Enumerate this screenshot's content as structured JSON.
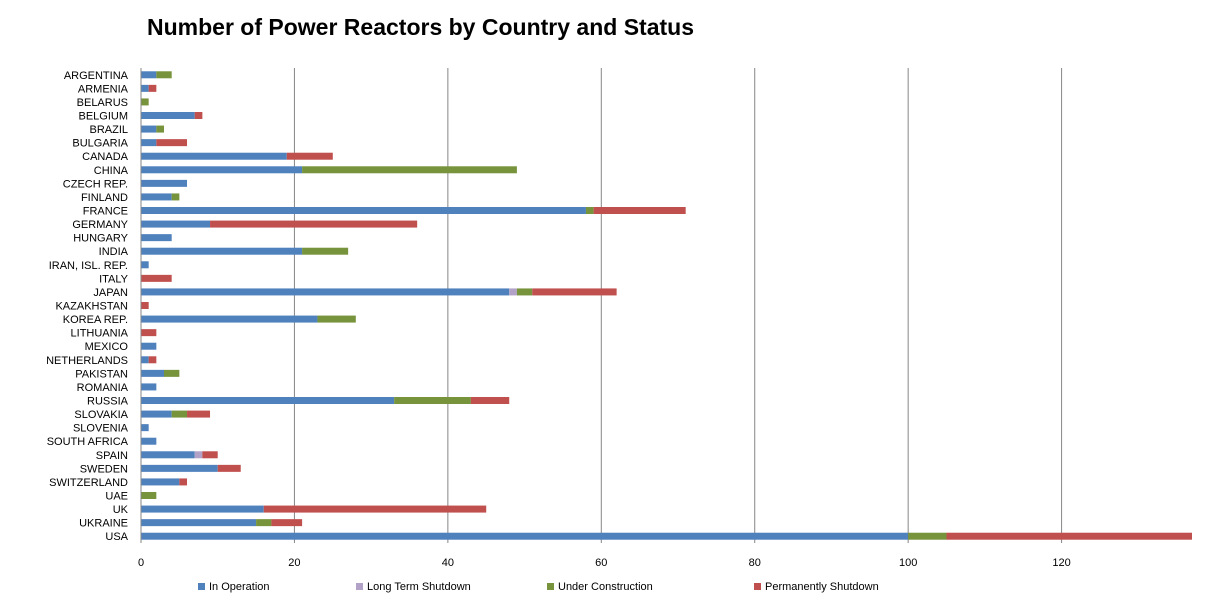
{
  "chart_data": {
    "type": "bar",
    "orientation": "horizontal",
    "stacked": true,
    "title": "Number of Power Reactors by Country and Status",
    "xlabel": "",
    "ylabel": "",
    "xlim": [
      0,
      137
    ],
    "xticks": [
      "0",
      "20",
      "40",
      "60",
      "80",
      "100",
      "120"
    ],
    "grid": "vertical",
    "legend_position": "bottom",
    "categories": [
      "ARGENTINA",
      "ARMENIA",
      "BELARUS",
      "BELGIUM",
      "BRAZIL",
      "BULGARIA",
      "CANADA",
      "CHINA",
      "CZECH REP.",
      "FINLAND",
      "FRANCE",
      "GERMANY",
      "HUNGARY",
      "INDIA",
      "IRAN, ISL. REP.",
      "ITALY",
      "JAPAN",
      "KAZAKHSTAN",
      "KOREA REP.",
      "LITHUANIA",
      "MEXICO",
      "NETHERLANDS",
      "PAKISTAN",
      "ROMANIA",
      "RUSSIA",
      "SLOVAKIA",
      "SLOVENIA",
      "SOUTH AFRICA",
      "SPAIN",
      "SWEDEN",
      "SWITZERLAND",
      "UAE",
      "UK",
      "UKRAINE",
      "USA"
    ],
    "series": [
      {
        "name": "In Operation",
        "color": "#4F81BD",
        "values": [
          2,
          1,
          0,
          7,
          2,
          2,
          19,
          21,
          6,
          4,
          58,
          9,
          4,
          21,
          1,
          0,
          48,
          0,
          23,
          0,
          2,
          1,
          3,
          2,
          33,
          4,
          1,
          2,
          7,
          10,
          5,
          0,
          16,
          15,
          100
        ]
      },
      {
        "name": "Long Term Shutdown",
        "color": "#B3A2C7",
        "values": [
          0,
          0,
          0,
          0,
          0,
          0,
          0,
          0,
          0,
          0,
          0,
          0,
          0,
          0,
          0,
          0,
          1,
          0,
          0,
          0,
          0,
          0,
          0,
          0,
          0,
          0,
          0,
          0,
          1,
          0,
          0,
          0,
          0,
          0,
          0
        ]
      },
      {
        "name": "Under Construction",
        "color": "#77933C",
        "values": [
          2,
          0,
          1,
          0,
          1,
          0,
          0,
          28,
          0,
          1,
          1,
          0,
          0,
          6,
          0,
          0,
          2,
          0,
          5,
          0,
          0,
          0,
          2,
          0,
          10,
          2,
          0,
          0,
          0,
          0,
          0,
          2,
          0,
          2,
          5
        ]
      },
      {
        "name": "Permanently Shutdown",
        "color": "#C0504D",
        "values": [
          0,
          1,
          0,
          1,
          0,
          4,
          6,
          0,
          0,
          0,
          12,
          27,
          0,
          0,
          0,
          4,
          11,
          1,
          0,
          2,
          0,
          1,
          0,
          0,
          5,
          3,
          0,
          0,
          2,
          3,
          1,
          0,
          29,
          4,
          32
        ]
      }
    ]
  }
}
